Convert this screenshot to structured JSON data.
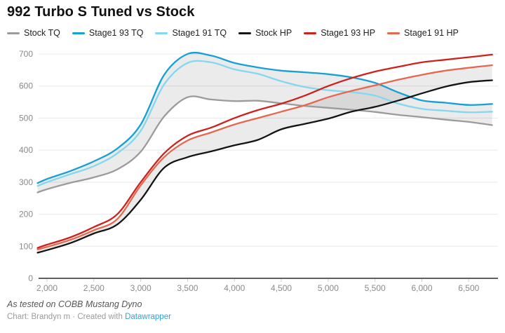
{
  "header": {
    "title": "992 Turbo S Tuned vs Stock"
  },
  "footer": {
    "note": "As tested on COBB Mustang Dyno",
    "credit_prefix": "Chart: Brandyn m · Created with ",
    "credit_link": "Datawrapper"
  },
  "colors": {
    "grid": "#e8e8e8",
    "axis_baseline": "#000000",
    "axis_text": "#8a8a8a",
    "band_fill": "rgba(0,0,0,0.08)",
    "link": "#2ea3d6"
  },
  "chart_data": {
    "type": "line",
    "title": "992 Turbo S Tuned vs Stock",
    "x": [
      1900,
      2000,
      2250,
      2500,
      2750,
      3000,
      3250,
      3500,
      3750,
      4000,
      4250,
      4500,
      4750,
      5000,
      5250,
      5500,
      5750,
      6000,
      6250,
      6500,
      6750
    ],
    "x_ticks": [
      2000,
      2500,
      3000,
      3500,
      4000,
      4500,
      5000,
      5500,
      6000,
      6500
    ],
    "x_tick_labels": [
      "2,000",
      "2,500",
      "3,000",
      "3,500",
      "4,000",
      "4,500",
      "5,000",
      "5,500",
      "6,000",
      "6,500"
    ],
    "y_ticks": [
      0,
      100,
      200,
      300,
      400,
      500,
      600,
      700
    ],
    "ylim": [
      0,
      700
    ],
    "xlim": [
      1900,
      6780
    ],
    "grid": "horizontal",
    "legend_position": "top",
    "series": [
      {
        "name": "Stock TQ",
        "color": "#9b9b9b",
        "values": [
          268,
          278,
          298,
          315,
          340,
          395,
          505,
          565,
          558,
          553,
          554,
          546,
          538,
          532,
          526,
          519,
          510,
          503,
          495,
          488,
          478
        ]
      },
      {
        "name": "Stage1 93 TQ",
        "color": "#189fd6",
        "values": [
          297,
          310,
          335,
          365,
          405,
          480,
          635,
          700,
          695,
          672,
          658,
          648,
          643,
          637,
          627,
          610,
          580,
          555,
          548,
          541,
          544
        ]
      },
      {
        "name": "Stage1 91 TQ",
        "color": "#84d7ef",
        "values": [
          288,
          300,
          325,
          350,
          390,
          460,
          605,
          672,
          674,
          652,
          638,
          615,
          597,
          587,
          581,
          570,
          545,
          529,
          523,
          518,
          520
        ]
      },
      {
        "name": "Stock HP",
        "color": "#141414",
        "values": [
          80,
          88,
          110,
          140,
          168,
          245,
          345,
          378,
          396,
          415,
          432,
          465,
          482,
          498,
          520,
          535,
          555,
          577,
          598,
          612,
          618
        ]
      },
      {
        "name": "Stage1 93 HP",
        "color": "#cf211b",
        "values": [
          95,
          105,
          128,
          160,
          200,
          300,
          390,
          445,
          470,
          500,
          525,
          545,
          570,
          600,
          625,
          645,
          660,
          674,
          682,
          690,
          698
        ]
      },
      {
        "name": "Stage1 91 HP",
        "color": "#e4684f",
        "values": [
          90,
          98,
          120,
          150,
          185,
          290,
          378,
          430,
          455,
          480,
          500,
          520,
          540,
          565,
          585,
          602,
          620,
          635,
          648,
          657,
          665
        ]
      }
    ],
    "bands": [
      {
        "upper": "Stage1 93 TQ",
        "lower": "Stock TQ"
      },
      {
        "upper": "Stage1 91 HP",
        "lower": "Stock HP"
      }
    ],
    "annotations": []
  }
}
